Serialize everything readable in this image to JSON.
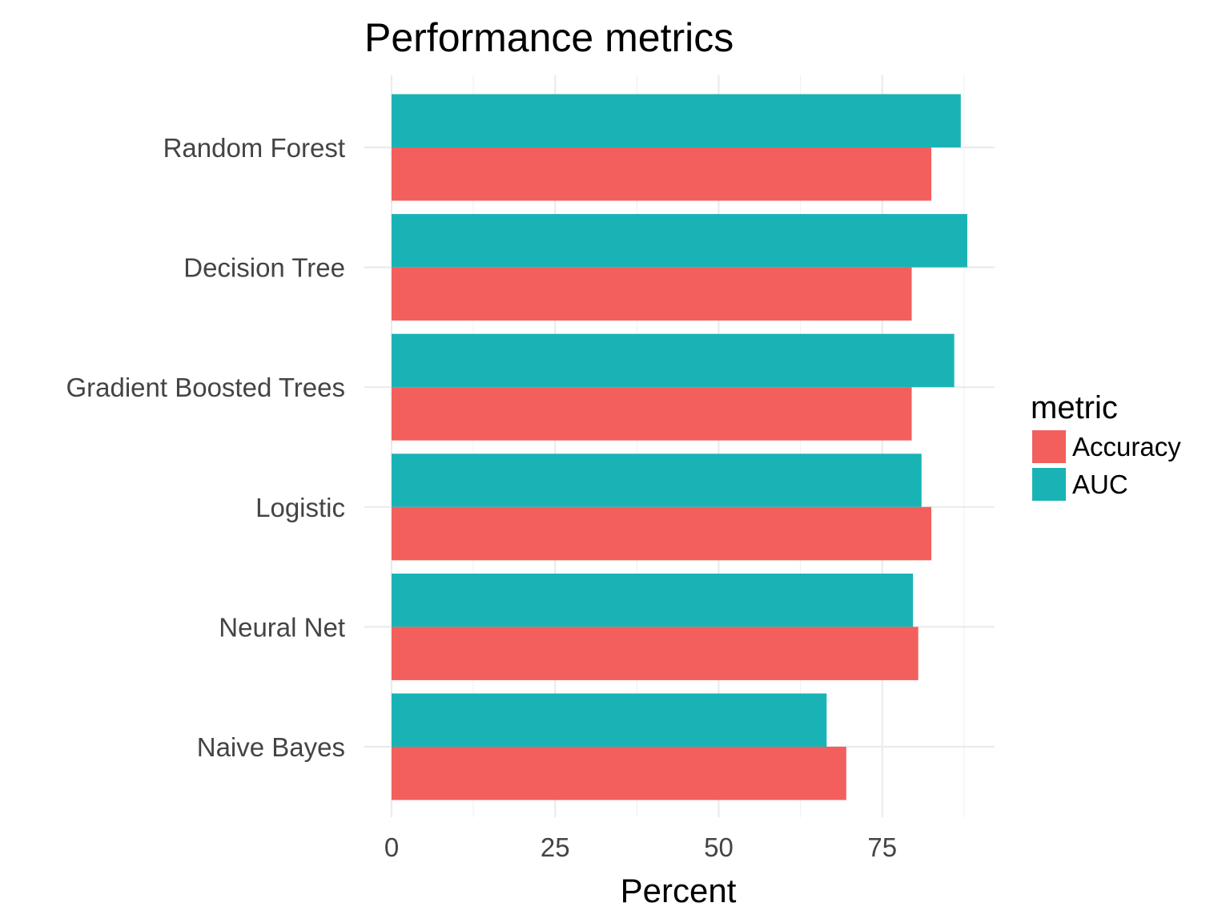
{
  "chart_data": {
    "type": "bar",
    "orientation": "horizontal",
    "title": "Performance metrics",
    "xlabel": "Percent",
    "ylabel": "",
    "categories": [
      "Random Forest",
      "Decision Tree",
      "Gradient Boosted Trees",
      "Logistic",
      "Neural Net",
      "Naive Bayes"
    ],
    "series": [
      {
        "name": "Accuracy",
        "color": "#F25F5C",
        "values": [
          82.5,
          79.5,
          79.5,
          82.5,
          80.5,
          69.5
        ]
      },
      {
        "name": "AUC",
        "color": "#19B3B6",
        "values": [
          87.0,
          88.0,
          86.0,
          81.0,
          79.7,
          66.5
        ]
      }
    ],
    "xticks": [
      "0",
      "25",
      "50",
      "75"
    ],
    "xlim": [
      0,
      92
    ],
    "grid": true,
    "legend": {
      "title": "metric",
      "position": "right"
    }
  }
}
